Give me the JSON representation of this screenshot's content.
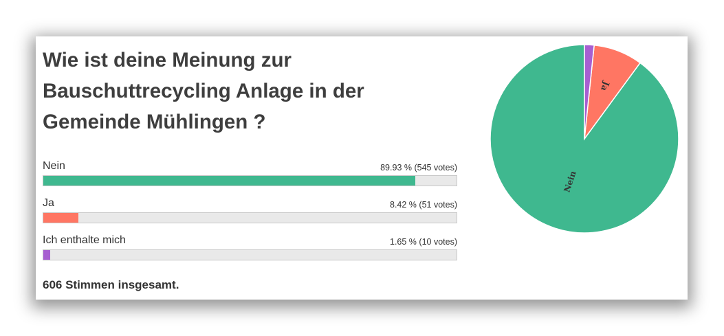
{
  "poll": {
    "question": "Wie ist deine Meinung zur Bauschuttrecycling Anlage in der Gemeinde Mühlingen ?",
    "total": "606 Stimmen insgesamt."
  },
  "chart_data": {
    "type": "pie",
    "categories": [
      "Nein",
      "Ja",
      "Ich enthalte mich"
    ],
    "values": [
      545,
      51,
      10
    ],
    "percent_labels": [
      "89.93 %",
      "8.42 %",
      "1.65 %"
    ],
    "vote_labels": [
      "(545 votes)",
      "(51 votes)",
      "(10 votes)"
    ],
    "colors": [
      "#3fb88f",
      "#ff7663",
      "#a75fd1"
    ],
    "pie_labels": [
      "Nein",
      "Ja",
      ""
    ],
    "bar_track_color": "#e9e9e9"
  }
}
